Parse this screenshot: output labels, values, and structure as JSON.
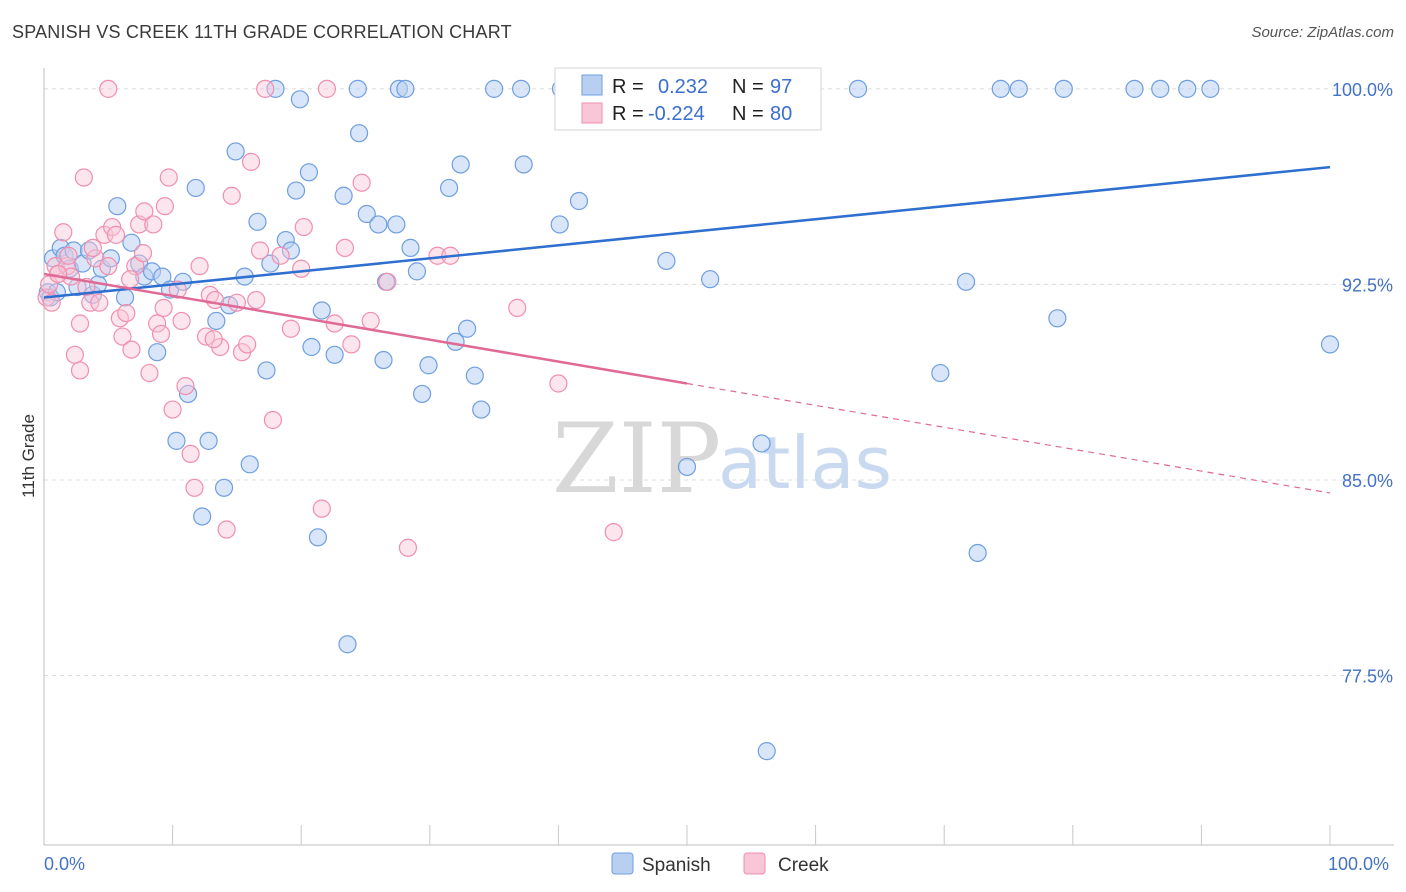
{
  "header": {
    "title": "SPANISH VS CREEK 11TH GRADE CORRELATION CHART",
    "source": "Source: ZipAtlas.com"
  },
  "colors": {
    "spanish": "#6f9fe0",
    "spanish_fill": "#b9cff2",
    "spanish_line": "#2e6fd0",
    "creek": "#f08fae",
    "creek_fill": "#f8c6d6",
    "creek_line": "#e06a96",
    "grid": "#dcdcdc",
    "axis_text": "#4472c4"
  },
  "legend": {
    "r_label": "R =",
    "n_label": "N =",
    "spanish_r": "0.232",
    "spanish_n": "97",
    "creek_r": "-0.224",
    "creek_n": "80"
  },
  "watermark": {
    "zip": "ZIP",
    "atlas": "atlas"
  },
  "chart_data": {
    "type": "scatter",
    "title": "SPANISH VS CREEK 11TH GRADE CORRELATION CHART",
    "xlabel": "",
    "ylabel": "11th Grade",
    "xlim": [
      0,
      100
    ],
    "ylim": [
      71.0,
      100.8
    ],
    "x_tick_labels": [
      "0.0%",
      "100.0%"
    ],
    "y_ticks": [
      100.0,
      92.5,
      85.0,
      77.5
    ],
    "y_tick_labels": [
      "100.0%",
      "92.5%",
      "85.0%",
      "77.5%"
    ],
    "grid": true,
    "legend_position": "top-center",
    "series": [
      {
        "name": "Spanish",
        "r": 0.232,
        "n": 97,
        "trend": {
          "x": [
            0,
            100
          ],
          "y": [
            92.0,
            97.0
          ]
        },
        "points": [
          [
            0.3,
            92.2
          ],
          [
            0.5,
            92.0
          ],
          [
            0.7,
            93.5
          ],
          [
            1.0,
            92.2
          ],
          [
            1.3,
            93.9
          ],
          [
            1.6,
            93.6
          ],
          [
            2.0,
            93.1
          ],
          [
            2.3,
            93.8
          ],
          [
            2.6,
            92.4
          ],
          [
            3.0,
            93.3
          ],
          [
            3.5,
            93.8
          ],
          [
            3.8,
            92.1
          ],
          [
            4.2,
            92.5
          ],
          [
            4.5,
            93.1
          ],
          [
            5.2,
            93.5
          ],
          [
            5.7,
            95.5
          ],
          [
            6.3,
            92.0
          ],
          [
            6.8,
            94.1
          ],
          [
            7.4,
            93.3
          ],
          [
            7.8,
            92.8
          ],
          [
            8.4,
            93.0
          ],
          [
            8.8,
            89.9
          ],
          [
            9.2,
            92.8
          ],
          [
            9.8,
            92.3
          ],
          [
            10.3,
            86.5
          ],
          [
            10.8,
            92.6
          ],
          [
            11.2,
            88.3
          ],
          [
            11.8,
            96.2
          ],
          [
            12.3,
            83.6
          ],
          [
            12.8,
            86.5
          ],
          [
            13.4,
            91.1
          ],
          [
            14.0,
            84.7
          ],
          [
            14.4,
            91.7
          ],
          [
            14.9,
            97.6
          ],
          [
            15.6,
            92.8
          ],
          [
            16.0,
            85.6
          ],
          [
            16.6,
            94.9
          ],
          [
            17.3,
            89.2
          ],
          [
            17.6,
            93.3
          ],
          [
            18.0,
            100.0
          ],
          [
            18.8,
            94.2
          ],
          [
            19.2,
            93.8
          ],
          [
            19.6,
            96.1
          ],
          [
            19.9,
            99.6
          ],
          [
            20.6,
            96.8
          ],
          [
            20.8,
            90.1
          ],
          [
            21.3,
            82.8
          ],
          [
            21.6,
            91.5
          ],
          [
            22.6,
            89.8
          ],
          [
            23.3,
            95.9
          ],
          [
            23.6,
            78.7
          ],
          [
            24.4,
            100.0
          ],
          [
            24.5,
            98.3
          ],
          [
            25.1,
            95.2
          ],
          [
            26.0,
            94.8
          ],
          [
            26.4,
            89.6
          ],
          [
            26.6,
            92.6
          ],
          [
            27.4,
            94.8
          ],
          [
            27.6,
            100.0
          ],
          [
            28.1,
            100.0
          ],
          [
            28.5,
            93.9
          ],
          [
            29.0,
            93.0
          ],
          [
            29.4,
            88.3
          ],
          [
            29.9,
            89.4
          ],
          [
            31.5,
            96.2
          ],
          [
            32.0,
            90.3
          ],
          [
            32.4,
            97.1
          ],
          [
            32.9,
            90.8
          ],
          [
            33.5,
            89.0
          ],
          [
            34.0,
            87.7
          ],
          [
            35.0,
            100.0
          ],
          [
            37.1,
            100.0
          ],
          [
            37.3,
            97.1
          ],
          [
            40.1,
            94.8
          ],
          [
            40.2,
            100.0
          ],
          [
            41.6,
            95.7
          ],
          [
            43.2,
            100.0
          ],
          [
            47.5,
            100.0
          ],
          [
            48.4,
            93.4
          ],
          [
            50.0,
            85.5
          ],
          [
            51.8,
            92.7
          ],
          [
            55.8,
            86.4
          ],
          [
            56.2,
            74.6
          ],
          [
            56.6,
            100.0
          ],
          [
            63.3,
            100.0
          ],
          [
            69.7,
            89.1
          ],
          [
            71.7,
            92.6
          ],
          [
            72.6,
            82.2
          ],
          [
            74.4,
            100.0
          ],
          [
            75.8,
            100.0
          ],
          [
            78.8,
            91.2
          ],
          [
            79.3,
            100.0
          ],
          [
            84.8,
            100.0
          ],
          [
            86.8,
            100.0
          ],
          [
            88.9,
            100.0
          ],
          [
            90.7,
            100.0
          ],
          [
            100.0,
            90.2
          ]
        ]
      },
      {
        "name": "Creek",
        "r": -0.224,
        "n": 80,
        "trend": {
          "x": [
            0,
            100
          ],
          "y": [
            92.9,
            84.5
          ],
          "solid_until": 50
        },
        "points": [
          [
            0.2,
            92.0
          ],
          [
            0.4,
            92.5
          ],
          [
            0.6,
            91.8
          ],
          [
            0.9,
            93.2
          ],
          [
            1.1,
            92.9
          ],
          [
            1.5,
            94.5
          ],
          [
            1.8,
            93.2
          ],
          [
            2.1,
            92.8
          ],
          [
            2.4,
            89.8
          ],
          [
            2.8,
            91.0
          ],
          [
            3.1,
            96.6
          ],
          [
            3.3,
            92.4
          ],
          [
            3.6,
            91.8
          ],
          [
            4.0,
            93.5
          ],
          [
            4.3,
            91.8
          ],
          [
            4.7,
            94.4
          ],
          [
            5.0,
            93.2
          ],
          [
            5.3,
            94.7
          ],
          [
            5.6,
            94.4
          ],
          [
            5.9,
            91.2
          ],
          [
            6.1,
            90.5
          ],
          [
            6.4,
            91.4
          ],
          [
            6.8,
            90.0
          ],
          [
            7.1,
            93.2
          ],
          [
            7.4,
            94.8
          ],
          [
            7.8,
            95.3
          ],
          [
            8.2,
            89.1
          ],
          [
            8.5,
            94.8
          ],
          [
            8.8,
            91.0
          ],
          [
            9.1,
            90.6
          ],
          [
            9.4,
            95.5
          ],
          [
            9.7,
            96.6
          ],
          [
            10.0,
            87.7
          ],
          [
            10.4,
            92.3
          ],
          [
            10.7,
            91.1
          ],
          [
            11.0,
            88.6
          ],
          [
            11.4,
            86.0
          ],
          [
            11.7,
            84.7
          ],
          [
            12.1,
            93.2
          ],
          [
            12.6,
            90.5
          ],
          [
            12.9,
            92.1
          ],
          [
            13.3,
            91.9
          ],
          [
            13.7,
            90.1
          ],
          [
            14.2,
            83.1
          ],
          [
            14.6,
            95.9
          ],
          [
            15.0,
            91.8
          ],
          [
            15.4,
            89.9
          ],
          [
            15.8,
            90.2
          ],
          [
            16.1,
            97.2
          ],
          [
            16.5,
            91.9
          ],
          [
            17.2,
            100.0
          ],
          [
            17.8,
            87.3
          ],
          [
            18.4,
            93.6
          ],
          [
            19.2,
            90.8
          ],
          [
            20.2,
            94.7
          ],
          [
            21.6,
            83.9
          ],
          [
            22.6,
            91.0
          ],
          [
            23.4,
            93.9
          ],
          [
            23.9,
            90.2
          ],
          [
            24.7,
            96.4
          ],
          [
            25.4,
            91.1
          ],
          [
            26.7,
            92.6
          ],
          [
            28.3,
            82.4
          ],
          [
            30.6,
            93.6
          ],
          [
            31.6,
            93.6
          ],
          [
            36.8,
            91.6
          ],
          [
            40.0,
            88.7
          ],
          [
            44.3,
            83.0
          ],
          [
            1.1,
            92.9
          ],
          [
            2.8,
            89.2
          ],
          [
            7.7,
            93.7
          ],
          [
            5.0,
            100.0
          ],
          [
            16.8,
            93.8
          ],
          [
            22.0,
            100.0
          ],
          [
            1.9,
            93.6
          ],
          [
            3.8,
            93.9
          ],
          [
            6.7,
            92.7
          ],
          [
            9.3,
            91.6
          ],
          [
            13.2,
            90.4
          ],
          [
            20.0,
            93.1
          ]
        ]
      }
    ],
    "bottom_legend": [
      "Spanish",
      "Creek"
    ]
  }
}
